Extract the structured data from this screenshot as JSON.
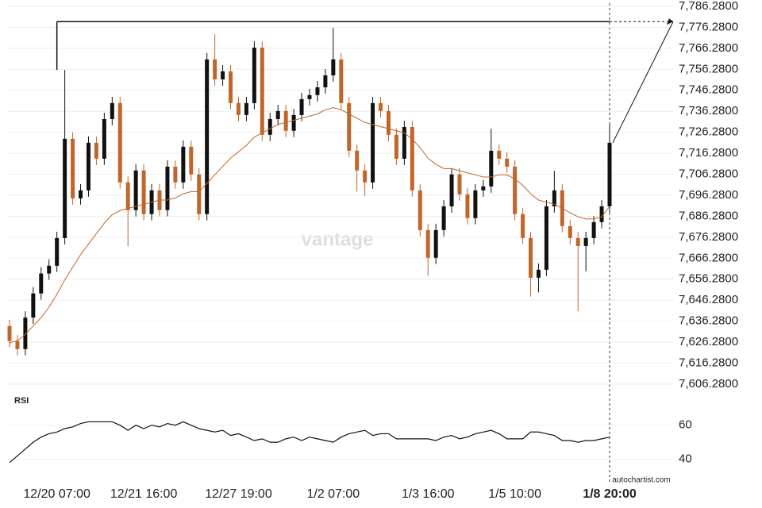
{
  "chart_data": {
    "type": "candlestick",
    "rsi_title": "RSI",
    "watermark": "vantage",
    "footer": "autochartist.com",
    "categories": [
      null,
      null,
      null,
      null,
      null,
      null,
      "12/20 07:00",
      null,
      null,
      null,
      null,
      null,
      null,
      null,
      null,
      null,
      null,
      "12/21 16:00",
      null,
      null,
      null,
      null,
      null,
      null,
      null,
      null,
      null,
      null,
      null,
      "12/27 19:00",
      null,
      null,
      null,
      null,
      null,
      null,
      null,
      null,
      null,
      null,
      null,
      "1/2 07:00",
      null,
      null,
      null,
      null,
      null,
      null,
      null,
      null,
      null,
      null,
      null,
      "1/3 16:00",
      null,
      null,
      null,
      null,
      null,
      null,
      null,
      null,
      null,
      null,
      "1/5 10:00",
      null,
      null,
      null,
      null,
      null,
      null,
      null,
      null,
      null,
      null,
      null,
      "1/8 20:00"
    ],
    "open": [
      7634,
      7626.8,
      7623,
      7638,
      7649.5,
      7659,
      7662.7,
      7675.9,
      7723.2,
      7694.8,
      7698.6,
      7721.3,
      7713.7,
      7732.6,
      7740.2,
      7702.4,
      7689.2,
      7708.1,
      7687.3,
      7698.6,
      7689.2,
      7709.9,
      7702.4,
      7719.4,
      7706.2,
      7687.3,
      7761,
      7751.5,
      7755.3,
      7740.2,
      7734.5,
      7740.2,
      7766.6,
      7725.1,
      7732.6,
      7736.4,
      7727,
      7734.5,
      7742.1,
      7744,
      7747.7,
      7753.4,
      7761,
      7740.2,
      7717.5,
      7708.1,
      7702.4,
      7740.2,
      7736.4,
      7725.1,
      7713.7,
      7728.8,
      7698.6,
      7679.7,
      7666.5,
      7679.7,
      7691,
      7706.2,
      7696.7,
      7685.4,
      7698.6,
      7700.5,
      7717.5,
      7713.7,
      7709.9,
      7687.3,
      7675.9,
      7657,
      7660.8,
      7691,
      7698.6,
      7681.6,
      7675.9,
      7672.1,
      7675.9,
      7683.5,
      7691
    ],
    "high": [
      7637,
      7629.8,
      7641,
      7652.5,
      7662,
      7665.7,
      7678.9,
      7756,
      7726.2,
      7701.6,
      7724.3,
      7724.3,
      7735.6,
      7743.2,
      7743.2,
      7705.4,
      7711.1,
      7711.1,
      7701.6,
      7701.6,
      7712.9,
      7712.9,
      7722.4,
      7722.4,
      7709.2,
      7764,
      7773,
      7758.3,
      7758.3,
      7743.2,
      7743.2,
      7769.6,
      7769.6,
      7735.6,
      7739.4,
      7739.4,
      7737.5,
      7745.1,
      7747,
      7750.7,
      7756.4,
      7776,
      7764,
      7743.2,
      7720.5,
      7711.1,
      7743.2,
      7743.2,
      7739.4,
      7728.1,
      7731.8,
      7731.8,
      7701.6,
      7682.7,
      7682.7,
      7694,
      7709.2,
      7709.2,
      7699.7,
      7701.6,
      7703.5,
      7728,
      7720.5,
      7716.7,
      7712.9,
      7690.3,
      7678.9,
      7663.8,
      7694,
      7708,
      7701.6,
      7684.6,
      7678.9,
      7678.9,
      7686.5,
      7694,
      7730
    ],
    "low": [
      7623.8,
      7620,
      7620,
      7635,
      7646.5,
      7656,
      7659.7,
      7672.9,
      7691.8,
      7691.8,
      7695.6,
      7710.7,
      7710.7,
      7729.6,
      7699.4,
      7672,
      7686.2,
      7684.3,
      7684.3,
      7686.2,
      7686.2,
      7699.4,
      7699.4,
      7703.2,
      7684.3,
      7684.3,
      7748.5,
      7748.5,
      7737.2,
      7731.5,
      7731.5,
      7737.2,
      7722.1,
      7722.1,
      7729.6,
      7724,
      7724,
      7731.5,
      7739.1,
      7741,
      7744.7,
      7750.4,
      7737.2,
      7714.5,
      7698,
      7696,
      7699.4,
      7733.4,
      7722.1,
      7710.7,
      7710.7,
      7695.6,
      7676.7,
      7658,
      7663.5,
      7676.7,
      7688,
      7693.7,
      7682.4,
      7682.4,
      7695.6,
      7697.5,
      7710.7,
      7706.9,
      7684.3,
      7672.9,
      7648,
      7650,
      7657.8,
      7688,
      7678.6,
      7672.9,
      7641,
      7660,
      7672.9,
      7680.5,
      7688
    ],
    "close": [
      7626.8,
      7623,
      7638,
      7649.5,
      7659,
      7662.7,
      7675.9,
      7723.2,
      7694.8,
      7698.6,
      7721.3,
      7713.7,
      7732.6,
      7740.2,
      7702.4,
      7689.2,
      7708.1,
      7687.3,
      7698.6,
      7689.2,
      7709.9,
      7702.4,
      7719.4,
      7706.2,
      7687.3,
      7761,
      7751.5,
      7755.3,
      7740.2,
      7734.5,
      7740.2,
      7766.6,
      7725.1,
      7732.6,
      7736.4,
      7727,
      7734.5,
      7742.1,
      7744,
      7747.7,
      7753.4,
      7761,
      7740.2,
      7717.5,
      7708.1,
      7702.4,
      7740.2,
      7736.4,
      7725.1,
      7713.7,
      7728.8,
      7698.6,
      7679.7,
      7666.5,
      7679.7,
      7691,
      7706.2,
      7696.7,
      7685.4,
      7698.6,
      7700.5,
      7717.5,
      7713.7,
      7709.9,
      7687.3,
      7675.9,
      7657,
      7660.8,
      7691,
      7698.6,
      7681.6,
      7675.9,
      7672.1,
      7675.9,
      7683.5,
      7691,
      7721.3
    ],
    "up_color": "#111111",
    "down_color": "#c0662a",
    "ma_color": "#c0662a",
    "ma": [
      7626,
      7627,
      7630,
      7634,
      7638,
      7643,
      7649,
      7656,
      7662,
      7668,
      7673,
      7678,
      7683,
      7687,
      7689,
      7690,
      7691,
      7692,
      7693,
      7694,
      7694,
      7695,
      7697,
      7698,
      7698,
      7702,
      7706,
      7710,
      7714,
      7717,
      7720,
      7724,
      7726,
      7728,
      7730,
      7731,
      7732,
      7733,
      7734,
      7735,
      7737,
      7738,
      7737,
      7735,
      7733,
      7731,
      7730,
      7729,
      7728,
      7727,
      7726,
      7723,
      7719,
      7714,
      7711,
      7709,
      7709,
      7708,
      7707,
      7706,
      7705,
      7705,
      7706,
      7706,
      7704,
      7701,
      7697,
      7694,
      7693,
      7692,
      7690,
      7688,
      7686,
      7685,
      7685,
      7686,
      7691
    ],
    "resistance_level": 7779,
    "ylim": [
      7606.28,
      7786.28
    ],
    "yticks": [
      {
        "value": 7786.28,
        "label": "7,786.2800"
      },
      {
        "value": 7776.28,
        "label": "7,776.2800"
      },
      {
        "value": 7766.28,
        "label": "7,766.2800"
      },
      {
        "value": 7756.28,
        "label": "7,756.2800"
      },
      {
        "value": 7746.28,
        "label": "7,746.2800"
      },
      {
        "value": 7736.28,
        "label": "7,736.2800"
      },
      {
        "value": 7726.28,
        "label": "7,726.2800"
      },
      {
        "value": 7716.28,
        "label": "7,716.2800"
      },
      {
        "value": 7706.28,
        "label": "7,706.2800"
      },
      {
        "value": 7696.28,
        "label": "7,696.2800"
      },
      {
        "value": 7686.28,
        "label": "7,686.2800"
      },
      {
        "value": 7676.28,
        "label": "7,676.2800"
      },
      {
        "value": 7666.28,
        "label": "7,666.2800"
      },
      {
        "value": 7656.28,
        "label": "7,656.2800"
      },
      {
        "value": 7646.28,
        "label": "7,646.2800"
      },
      {
        "value": 7636.28,
        "label": "7,636.2800"
      },
      {
        "value": 7626.28,
        "label": "7,626.2800"
      },
      {
        "value": 7616.28,
        "label": "7,616.2800"
      },
      {
        "value": 7606.28,
        "label": "7,606.2800"
      }
    ],
    "rsi": [
      38,
      42,
      46,
      50,
      53,
      55,
      56,
      58,
      59,
      61,
      62,
      62,
      62,
      62,
      60,
      57,
      60,
      58,
      60,
      59,
      61,
      60,
      62,
      60,
      58,
      57,
      56,
      57,
      54,
      55,
      53,
      51,
      52,
      50,
      50,
      52,
      53,
      51,
      53,
      52,
      51,
      50,
      53,
      55,
      56,
      57,
      54,
      55,
      55,
      52,
      52,
      52,
      52,
      52,
      51,
      53,
      54,
      52,
      53,
      55,
      56,
      57,
      55,
      52,
      52,
      52,
      56,
      56,
      55,
      54,
      51,
      51,
      50,
      51,
      51,
      52,
      53
    ],
    "rsi_ylim": [
      30,
      72
    ],
    "rsi_yticks": [
      60,
      40
    ],
    "grid": true
  }
}
